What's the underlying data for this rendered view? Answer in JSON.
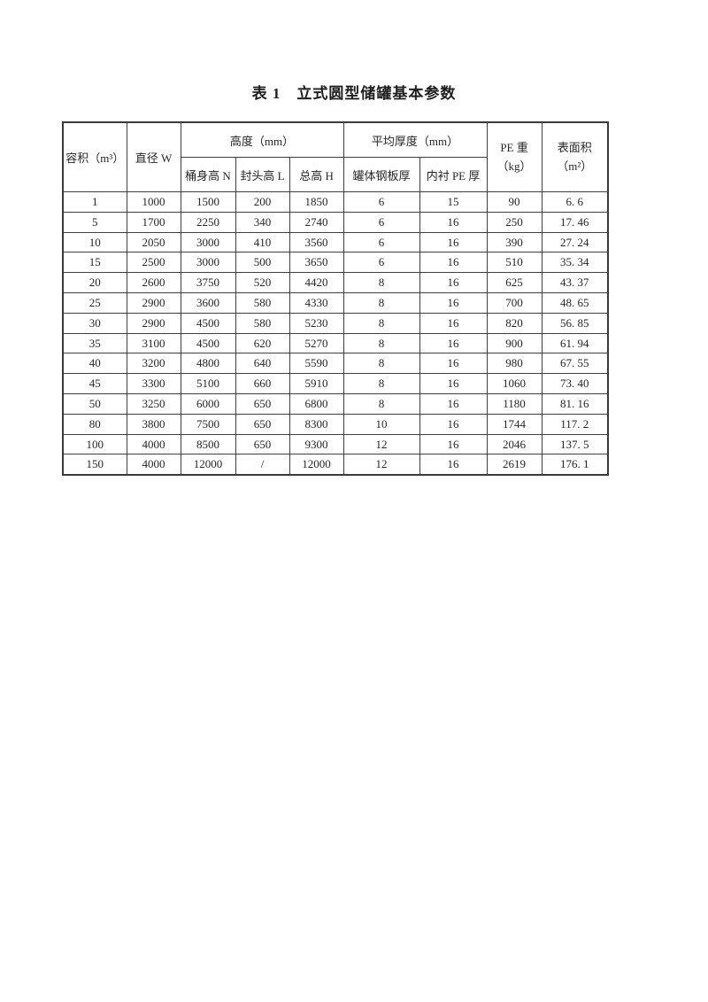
{
  "title": "表 1　立式圆型储罐基本参数",
  "table": {
    "header": {
      "volume": "容积（m³）",
      "diameter": "直径 W",
      "height_group": "高度（mm）",
      "height_body": "桶身高 N",
      "height_head": "封头高 L",
      "height_total": "总高 H",
      "thickness_group": "平均厚度（mm）",
      "thickness_steel": "罐体钢板厚",
      "thickness_pe": "内衬 PE 厚",
      "pe_weight_line1": "PE 重",
      "pe_weight_line2": "（kg）",
      "surface_line1": "表面积",
      "surface_line2": "（m²）"
    },
    "rows": [
      [
        "1",
        "1000",
        "1500",
        "200",
        "1850",
        "6",
        "15",
        "90",
        "6. 6"
      ],
      [
        "5",
        "1700",
        "2250",
        "340",
        "2740",
        "6",
        "16",
        "250",
        "17. 46"
      ],
      [
        "10",
        "2050",
        "3000",
        "410",
        "3560",
        "6",
        "16",
        "390",
        "27. 24"
      ],
      [
        "15",
        "2500",
        "3000",
        "500",
        "3650",
        "6",
        "16",
        "510",
        "35. 34"
      ],
      [
        "20",
        "2600",
        "3750",
        "520",
        "4420",
        "8",
        "16",
        "625",
        "43. 37"
      ],
      [
        "25",
        "2900",
        "3600",
        "580",
        "4330",
        "8",
        "16",
        "700",
        "48. 65"
      ],
      [
        "30",
        "2900",
        "4500",
        "580",
        "5230",
        "8",
        "16",
        "820",
        "56. 85"
      ],
      [
        "35",
        "3100",
        "4500",
        "620",
        "5270",
        "8",
        "16",
        "900",
        "61. 94"
      ],
      [
        "40",
        "3200",
        "4800",
        "640",
        "5590",
        "8",
        "16",
        "980",
        "67. 55"
      ],
      [
        "45",
        "3300",
        "5100",
        "660",
        "5910",
        "8",
        "16",
        "1060",
        "73. 40"
      ],
      [
        "50",
        "3250",
        "6000",
        "650",
        "6800",
        "8",
        "16",
        "1180",
        "81. 16"
      ],
      [
        "80",
        "3800",
        "7500",
        "650",
        "8300",
        "10",
        "16",
        "1744",
        "117. 2"
      ],
      [
        "100",
        "4000",
        "8500",
        "650",
        "9300",
        "12",
        "16",
        "2046",
        "137. 5"
      ],
      [
        "150",
        "4000",
        "12000",
        "/",
        "12000",
        "12",
        "16",
        "2619",
        "176. 1"
      ]
    ]
  },
  "colors": {
    "page_background": "#ffffff",
    "text": "#262626",
    "border": "#3f3f3f"
  }
}
